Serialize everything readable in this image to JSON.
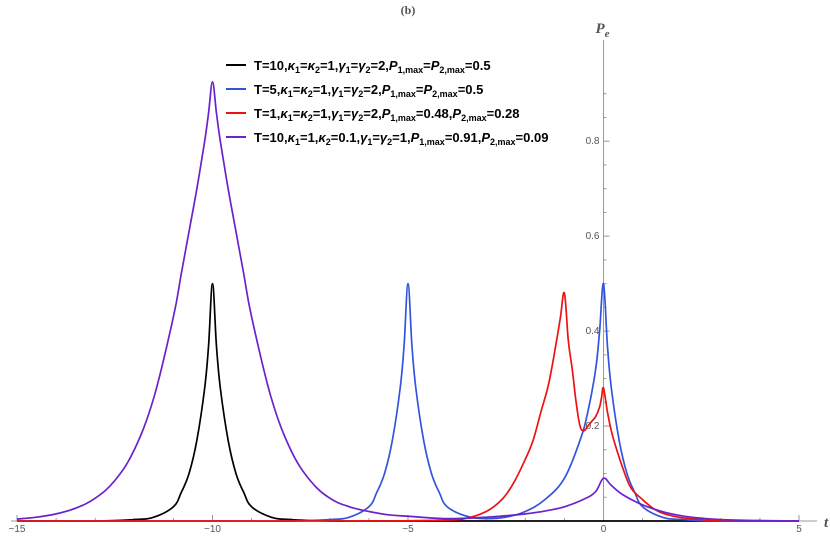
{
  "chart_data": {
    "type": "line",
    "panel_label": "(b)",
    "xlabel": "t",
    "ylabel": {
      "base": "P",
      "sub": "e"
    },
    "xlim": [
      -15,
      5
    ],
    "ylim": [
      0,
      0.95
    ],
    "x_ticks": [
      -15,
      -10,
      -5,
      0,
      5
    ],
    "x_tick_labels": [
      "−15",
      "−10",
      "−5",
      "0",
      "5"
    ],
    "y_ticks": [
      0.2,
      0.4,
      0.6,
      0.8
    ],
    "y_tick_labels": [
      "0.2",
      "0.4",
      "0.6",
      "0.8"
    ],
    "grid": false,
    "legend_position": "top-center",
    "series": [
      {
        "color": "#000000",
        "legend_parts": [
          [
            "T=10,",
            ""
          ],
          [
            "κ",
            "it"
          ],
          [
            "1",
            "sub"
          ],
          [
            "=",
            ""
          ],
          [
            "κ",
            "it"
          ],
          [
            "2",
            "sub"
          ],
          [
            "=1,",
            ""
          ],
          [
            "γ",
            "it"
          ],
          [
            "1",
            "sub"
          ],
          [
            "=",
            ""
          ],
          [
            "γ",
            "it"
          ],
          [
            "2",
            "sub"
          ],
          [
            "=2,",
            ""
          ],
          [
            "P",
            "it"
          ],
          [
            "1,max",
            "sub"
          ],
          [
            "=",
            ""
          ],
          [
            "P",
            "it"
          ],
          [
            "2,max",
            "sub"
          ],
          [
            "=0.5",
            ""
          ]
        ],
        "x": [
          -15,
          -14,
          -13,
          -12,
          -11.5,
          -11,
          -10.8,
          -10.6,
          -10.4,
          -10.2,
          -10.1,
          -10,
          -9.9,
          -9.8,
          -9.6,
          -9.4,
          -9.2,
          -9,
          -8.5,
          -8,
          -7,
          -6,
          -5,
          -3,
          0,
          5
        ],
        "y": [
          0.0,
          0.0,
          0.0,
          0.003,
          0.008,
          0.03,
          0.06,
          0.1,
          0.17,
          0.28,
          0.37,
          0.5,
          0.37,
          0.28,
          0.17,
          0.1,
          0.06,
          0.03,
          0.008,
          0.003,
          0.0,
          0.0,
          0.0,
          0.0,
          0.0,
          0.0
        ]
      },
      {
        "color": "#3355dd",
        "legend_parts": [
          [
            "T=5,",
            ""
          ],
          [
            "κ",
            "it"
          ],
          [
            "1",
            "sub"
          ],
          [
            "=",
            ""
          ],
          [
            "κ",
            "it"
          ],
          [
            "2",
            "sub"
          ],
          [
            "=1,",
            ""
          ],
          [
            "γ",
            "it"
          ],
          [
            "1",
            "sub"
          ],
          [
            "=",
            ""
          ],
          [
            "γ",
            "it"
          ],
          [
            "2",
            "sub"
          ],
          [
            "=2,",
            ""
          ],
          [
            "P",
            "it"
          ],
          [
            "1,max",
            "sub"
          ],
          [
            "=",
            ""
          ],
          [
            "P",
            "it"
          ],
          [
            "2,max",
            "sub"
          ],
          [
            "=0.5",
            ""
          ]
        ],
        "x": [
          -15,
          -10,
          -8,
          -7,
          -6.5,
          -6,
          -5.8,
          -5.6,
          -5.4,
          -5.2,
          -5.1,
          -5,
          -4.9,
          -4.8,
          -4.6,
          -4.4,
          -4.2,
          -4,
          -3.5,
          -3,
          -2.5,
          -2,
          -1.5,
          -1,
          -0.6,
          -0.4,
          -0.2,
          -0.1,
          0,
          0.1,
          0.2,
          0.4,
          0.6,
          0.8,
          1,
          1.5,
          2,
          3,
          4,
          5
        ],
        "y": [
          0.0,
          0.0,
          0.0,
          0.003,
          0.008,
          0.03,
          0.06,
          0.1,
          0.17,
          0.28,
          0.37,
          0.5,
          0.37,
          0.28,
          0.17,
          0.1,
          0.06,
          0.03,
          0.01,
          0.005,
          0.008,
          0.02,
          0.045,
          0.09,
          0.17,
          0.23,
          0.32,
          0.4,
          0.5,
          0.37,
          0.28,
          0.17,
          0.1,
          0.06,
          0.03,
          0.008,
          0.003,
          0.0,
          0.0,
          0.0
        ]
      },
      {
        "color": "#ee1111",
        "legend_parts": [
          [
            "T=1,",
            ""
          ],
          [
            "κ",
            "it"
          ],
          [
            "1",
            "sub"
          ],
          [
            "=",
            ""
          ],
          [
            "κ",
            "it"
          ],
          [
            "2",
            "sub"
          ],
          [
            "=1,",
            ""
          ],
          [
            "γ",
            "it"
          ],
          [
            "1",
            "sub"
          ],
          [
            "=",
            ""
          ],
          [
            "γ",
            "it"
          ],
          [
            "2",
            "sub"
          ],
          [
            "=2,",
            ""
          ],
          [
            "P",
            "it"
          ],
          [
            "1,max",
            "sub"
          ],
          [
            "=0.48,",
            ""
          ],
          [
            "P",
            "it"
          ],
          [
            "2,max",
            "sub"
          ],
          [
            "=0.28",
            ""
          ]
        ],
        "x": [
          -15,
          -10,
          -6,
          -4,
          -3.5,
          -3,
          -2.6,
          -2.3,
          -2,
          -1.8,
          -1.6,
          -1.4,
          -1.2,
          -1.1,
          -1,
          -0.9,
          -0.8,
          -0.7,
          -0.6,
          -0.5,
          -0.4,
          -0.3,
          -0.2,
          -0.1,
          -0.05,
          0,
          0.1,
          0.2,
          0.3,
          0.5,
          0.7,
          1,
          1.3,
          1.6,
          2,
          2.5,
          3,
          4,
          5
        ],
        "y": [
          0.0,
          0.0,
          0.0,
          0.002,
          0.006,
          0.02,
          0.045,
          0.08,
          0.13,
          0.17,
          0.23,
          0.29,
          0.38,
          0.43,
          0.48,
          0.38,
          0.32,
          0.25,
          0.2,
          0.19,
          0.2,
          0.21,
          0.22,
          0.24,
          0.26,
          0.28,
          0.23,
          0.19,
          0.16,
          0.11,
          0.07,
          0.045,
          0.025,
          0.014,
          0.007,
          0.003,
          0.0,
          0.0,
          0.0
        ]
      },
      {
        "color": "#6a22cc",
        "legend_parts": [
          [
            "T=10,",
            ""
          ],
          [
            "κ",
            "it"
          ],
          [
            "1",
            "sub"
          ],
          [
            "=1,",
            ""
          ],
          [
            "κ",
            "it"
          ],
          [
            "2",
            "sub"
          ],
          [
            "=0.1,",
            ""
          ],
          [
            "γ",
            "it"
          ],
          [
            "1",
            "sub"
          ],
          [
            "=",
            ""
          ],
          [
            "γ",
            "it"
          ],
          [
            "2",
            "sub"
          ],
          [
            "=1,",
            ""
          ],
          [
            "P",
            "it"
          ],
          [
            "1,max",
            "sub"
          ],
          [
            "=0.91,",
            ""
          ],
          [
            "P",
            "it"
          ],
          [
            "2,max",
            "sub"
          ],
          [
            "=0.09",
            ""
          ]
        ],
        "x": [
          -15,
          -14.5,
          -14,
          -13.5,
          -13,
          -12.5,
          -12,
          -11.5,
          -11,
          -10.8,
          -10.6,
          -10.4,
          -10.2,
          -10.1,
          -10,
          -9.9,
          -9.8,
          -9.6,
          -9.4,
          -9.2,
          -9,
          -8.5,
          -8,
          -7.5,
          -7,
          -6.5,
          -6,
          -5.5,
          -5,
          -4,
          -3,
          -2.5,
          -2,
          -1.5,
          -1,
          -0.5,
          -0.2,
          0,
          0.2,
          0.5,
          1,
          1.5,
          2,
          2.5,
          3,
          4,
          5
        ],
        "y": [
          0.004,
          0.008,
          0.015,
          0.027,
          0.048,
          0.085,
          0.15,
          0.26,
          0.43,
          0.52,
          0.61,
          0.7,
          0.8,
          0.86,
          0.925,
          0.86,
          0.8,
          0.7,
          0.61,
          0.52,
          0.43,
          0.26,
          0.15,
          0.085,
          0.048,
          0.03,
          0.02,
          0.013,
          0.01,
          0.005,
          0.008,
          0.011,
          0.015,
          0.021,
          0.03,
          0.046,
          0.062,
          0.09,
          0.075,
          0.055,
          0.034,
          0.02,
          0.011,
          0.006,
          0.003,
          0.001,
          0.0
        ]
      }
    ]
  }
}
